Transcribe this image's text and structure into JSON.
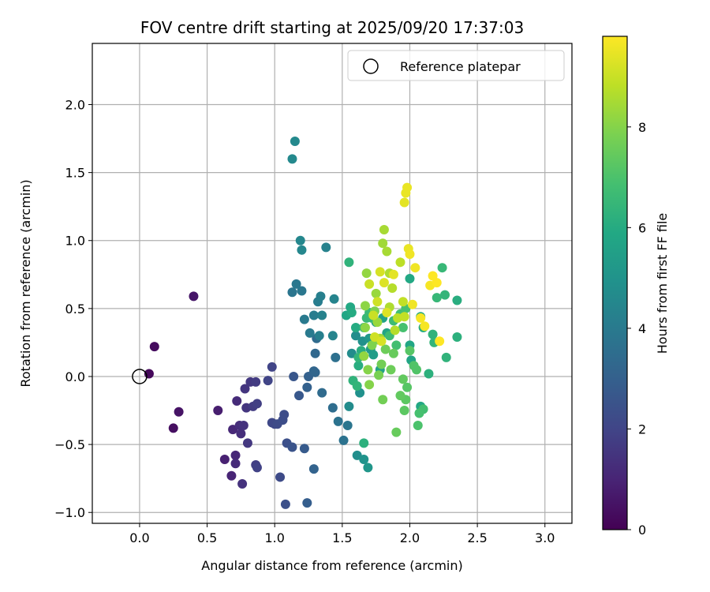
{
  "chart_data": {
    "type": "scatter",
    "title": "FOV centre drift starting at 2025/09/20 17:37:03",
    "xlabel": "Angular distance from reference (arcmin)",
    "ylabel": "Rotation from reference (arcmin)",
    "xlim": [
      -0.35,
      3.2
    ],
    "ylim": [
      -1.08,
      2.45
    ],
    "xticks": [
      0.0,
      0.5,
      1.0,
      1.5,
      2.0,
      2.5,
      3.0
    ],
    "xtick_labels": [
      "0.0",
      "0.5",
      "1.0",
      "1.5",
      "2.0",
      "2.5",
      "3.0"
    ],
    "yticks": [
      -1.0,
      -0.5,
      0.0,
      0.5,
      1.0,
      1.5,
      2.0
    ],
    "ytick_labels": [
      "−1.0",
      "−0.5",
      "0.0",
      "0.5",
      "1.0",
      "1.5",
      "2.0"
    ],
    "grid": true,
    "legend": {
      "position": "top-right",
      "entries": [
        "Reference platepar"
      ]
    },
    "reference_point": {
      "x": 0.0,
      "y": 0.0
    },
    "colorbar": {
      "label": "Hours from first FF file",
      "min": 0,
      "max": 9.8,
      "ticks": [
        0,
        2,
        4,
        6,
        8
      ],
      "tick_labels": [
        "0",
        "2",
        "4",
        "6",
        "8"
      ],
      "colormap": "viridis"
    },
    "series": [
      {
        "name": "FOV centre",
        "points": [
          [
            0.07,
            0.02,
            0.2
          ],
          [
            0.11,
            0.22,
            0.3
          ],
          [
            0.25,
            -0.38,
            0.4
          ],
          [
            0.29,
            -0.26,
            0.5
          ],
          [
            0.4,
            0.59,
            0.6
          ],
          [
            0.58,
            -0.25,
            0.8
          ],
          [
            0.63,
            -0.61,
            0.9
          ],
          [
            0.68,
            -0.73,
            1.0
          ],
          [
            0.69,
            -0.39,
            1.1
          ],
          [
            0.71,
            -0.58,
            1.1
          ],
          [
            0.71,
            -0.64,
            1.2
          ],
          [
            0.72,
            -0.18,
            1.2
          ],
          [
            0.74,
            -0.36,
            1.3
          ],
          [
            0.75,
            -0.42,
            1.3
          ],
          [
            0.76,
            -0.79,
            1.4
          ],
          [
            0.77,
            -0.36,
            1.4
          ],
          [
            0.78,
            -0.09,
            1.5
          ],
          [
            0.79,
            -0.23,
            1.5
          ],
          [
            0.8,
            -0.49,
            1.6
          ],
          [
            0.82,
            -0.04,
            1.6
          ],
          [
            0.84,
            -0.22,
            1.7
          ],
          [
            0.86,
            -0.04,
            1.7
          ],
          [
            0.86,
            -0.65,
            1.8
          ],
          [
            0.87,
            -0.2,
            1.8
          ],
          [
            0.87,
            -0.67,
            1.9
          ],
          [
            0.95,
            -0.03,
            2.0
          ],
          [
            0.98,
            0.07,
            2.0
          ],
          [
            0.98,
            -0.34,
            2.1
          ],
          [
            1.0,
            -0.35,
            2.1
          ],
          [
            1.02,
            -0.35,
            2.2
          ],
          [
            1.04,
            -0.74,
            2.2
          ],
          [
            1.06,
            -0.32,
            2.3
          ],
          [
            1.07,
            -0.28,
            2.3
          ],
          [
            1.08,
            -0.94,
            2.4
          ],
          [
            1.09,
            -0.49,
            2.4
          ],
          [
            1.13,
            -0.52,
            2.5
          ],
          [
            1.14,
            0.0,
            2.6
          ],
          [
            1.18,
            -0.14,
            2.7
          ],
          [
            1.22,
            -0.53,
            2.8
          ],
          [
            1.24,
            -0.93,
            2.9
          ],
          [
            1.24,
            -0.08,
            3.0
          ],
          [
            1.25,
            0.0,
            3.0
          ],
          [
            1.29,
            -0.68,
            3.1
          ],
          [
            1.29,
            0.04,
            3.2
          ],
          [
            1.3,
            0.03,
            3.2
          ],
          [
            1.3,
            0.17,
            3.3
          ],
          [
            1.31,
            0.28,
            3.4
          ],
          [
            1.35,
            -0.12,
            3.4
          ],
          [
            1.43,
            -0.23,
            3.5
          ],
          [
            1.45,
            0.14,
            3.6
          ],
          [
            1.47,
            -0.33,
            3.7
          ],
          [
            1.51,
            -0.47,
            3.7
          ],
          [
            1.54,
            -0.36,
            3.8
          ],
          [
            1.13,
            0.62,
            3.8
          ],
          [
            1.16,
            0.68,
            3.9
          ],
          [
            1.2,
            0.63,
            3.9
          ],
          [
            1.22,
            0.42,
            4.0
          ],
          [
            1.26,
            0.32,
            4.0
          ],
          [
            1.29,
            0.45,
            4.1
          ],
          [
            1.32,
            0.55,
            4.1
          ],
          [
            1.33,
            0.3,
            4.2
          ],
          [
            1.34,
            0.59,
            4.2
          ],
          [
            1.35,
            0.45,
            4.3
          ],
          [
            1.38,
            0.95,
            4.3
          ],
          [
            1.43,
            0.3,
            4.4
          ],
          [
            1.44,
            0.57,
            4.4
          ],
          [
            1.19,
            1.0,
            4.5
          ],
          [
            1.2,
            0.93,
            4.5
          ],
          [
            1.13,
            1.6,
            4.6
          ],
          [
            1.15,
            1.73,
            4.6
          ],
          [
            1.55,
            -0.22,
            4.7
          ],
          [
            1.57,
            0.17,
            4.7
          ],
          [
            1.6,
            0.3,
            4.8
          ],
          [
            1.61,
            -0.58,
            4.8
          ],
          [
            1.63,
            -0.12,
            4.9
          ],
          [
            1.65,
            0.26,
            4.9
          ],
          [
            1.66,
            -0.61,
            5.0
          ],
          [
            1.69,
            -0.67,
            5.1
          ],
          [
            1.7,
            0.28,
            5.2
          ],
          [
            1.71,
            0.2,
            5.3
          ],
          [
            1.73,
            0.16,
            5.4
          ],
          [
            1.75,
            0.4,
            5.5
          ],
          [
            1.78,
            0.05,
            5.6
          ],
          [
            1.8,
            0.43,
            5.6
          ],
          [
            1.83,
            0.32,
            5.7
          ],
          [
            1.53,
            0.45,
            5.8
          ],
          [
            1.56,
            0.51,
            5.9
          ],
          [
            1.57,
            0.47,
            6.0
          ],
          [
            1.6,
            0.36,
            6.0
          ],
          [
            1.62,
            0.08,
            6.1
          ],
          [
            1.64,
            0.19,
            6.1
          ],
          [
            1.66,
            -0.49,
            6.2
          ],
          [
            1.55,
            0.84,
            6.3
          ],
          [
            1.58,
            -0.03,
            6.3
          ],
          [
            1.61,
            -0.07,
            6.4
          ],
          [
            1.62,
            0.14,
            6.4
          ],
          [
            1.66,
            0.36,
            6.5
          ],
          [
            1.68,
            0.43,
            6.5
          ],
          [
            1.7,
            0.47,
            6.6
          ],
          [
            1.72,
            0.43,
            6.6
          ],
          [
            1.85,
            0.3,
            6.7
          ],
          [
            1.88,
            0.41,
            6.7
          ],
          [
            1.9,
            0.23,
            6.8
          ],
          [
            1.93,
            0.46,
            6.8
          ],
          [
            1.95,
            0.36,
            6.9
          ],
          [
            1.97,
            0.5,
            6.9
          ],
          [
            2.0,
            0.72,
            5.9
          ],
          [
            2.0,
            0.23,
            5.8
          ],
          [
            2.01,
            0.12,
            5.7
          ],
          [
            2.08,
            -0.22,
            5.9
          ],
          [
            2.08,
            0.44,
            6.0
          ],
          [
            2.1,
            0.36,
            6.1
          ],
          [
            2.14,
            0.02,
            6.2
          ],
          [
            2.17,
            0.31,
            6.3
          ],
          [
            2.18,
            0.25,
            6.4
          ],
          [
            2.2,
            0.58,
            6.5
          ],
          [
            2.24,
            0.8,
            6.5
          ],
          [
            2.26,
            0.6,
            6.4
          ],
          [
            2.27,
            0.14,
            6.3
          ],
          [
            2.35,
            0.29,
            6.2
          ],
          [
            2.35,
            0.56,
            6.1
          ],
          [
            2.1,
            -0.24,
            6.8
          ],
          [
            2.07,
            -0.27,
            6.9
          ],
          [
            2.06,
            -0.36,
            7.0
          ],
          [
            2.05,
            0.05,
            7.1
          ],
          [
            2.03,
            0.08,
            7.1
          ],
          [
            2.0,
            0.19,
            7.2
          ],
          [
            1.98,
            -0.08,
            7.2
          ],
          [
            1.97,
            -0.17,
            7.3
          ],
          [
            1.96,
            -0.25,
            7.3
          ],
          [
            1.95,
            -0.02,
            7.4
          ],
          [
            1.93,
            -0.14,
            7.4
          ],
          [
            1.9,
            -0.41,
            7.5
          ],
          [
            1.88,
            0.17,
            7.5
          ],
          [
            1.86,
            0.05,
            7.6
          ],
          [
            1.82,
            0.2,
            7.6
          ],
          [
            1.8,
            -0.17,
            7.7
          ],
          [
            1.79,
            0.09,
            7.7
          ],
          [
            1.77,
            0.01,
            7.8
          ],
          [
            1.76,
            0.27,
            7.8
          ],
          [
            1.74,
            0.48,
            7.9
          ],
          [
            1.72,
            0.23,
            7.9
          ],
          [
            1.7,
            -0.06,
            8.0
          ],
          [
            1.69,
            0.05,
            8.0
          ],
          [
            1.67,
            0.52,
            8.1
          ],
          [
            1.67,
            0.36,
            8.1
          ],
          [
            1.66,
            0.15,
            8.2
          ],
          [
            1.68,
            0.76,
            8.2
          ],
          [
            1.75,
            0.61,
            8.3
          ],
          [
            1.76,
            0.4,
            8.3
          ],
          [
            1.78,
            0.28,
            8.4
          ],
          [
            1.8,
            0.98,
            8.4
          ],
          [
            1.81,
            1.08,
            8.5
          ],
          [
            1.83,
            0.92,
            8.5
          ],
          [
            1.85,
            0.76,
            8.6
          ],
          [
            1.85,
            0.51,
            8.6
          ],
          [
            1.87,
            0.65,
            8.7
          ],
          [
            1.89,
            0.34,
            8.7
          ],
          [
            1.91,
            0.43,
            8.8
          ],
          [
            1.93,
            0.84,
            8.8
          ],
          [
            1.95,
            0.55,
            8.9
          ],
          [
            1.96,
            0.44,
            8.9
          ],
          [
            1.7,
            0.68,
            9.0
          ],
          [
            1.73,
            0.45,
            9.0
          ],
          [
            1.74,
            0.29,
            9.1
          ],
          [
            1.76,
            0.55,
            9.1
          ],
          [
            1.78,
            0.77,
            9.2
          ],
          [
            1.79,
            0.26,
            9.2
          ],
          [
            1.81,
            0.69,
            9.3
          ],
          [
            1.83,
            0.47,
            9.3
          ],
          [
            1.88,
            0.75,
            9.4
          ],
          [
            1.96,
            1.28,
            9.4
          ],
          [
            1.97,
            1.35,
            9.5
          ],
          [
            1.98,
            1.39,
            9.5
          ],
          [
            1.99,
            0.94,
            9.5
          ],
          [
            2.0,
            0.9,
            9.6
          ],
          [
            2.02,
            0.53,
            9.6
          ],
          [
            2.04,
            0.8,
            9.6
          ],
          [
            2.08,
            0.43,
            9.7
          ],
          [
            2.11,
            0.37,
            9.7
          ],
          [
            2.15,
            0.67,
            9.7
          ],
          [
            2.17,
            0.74,
            9.8
          ],
          [
            2.2,
            0.69,
            9.8
          ],
          [
            2.22,
            0.26,
            9.8
          ]
        ]
      }
    ]
  }
}
